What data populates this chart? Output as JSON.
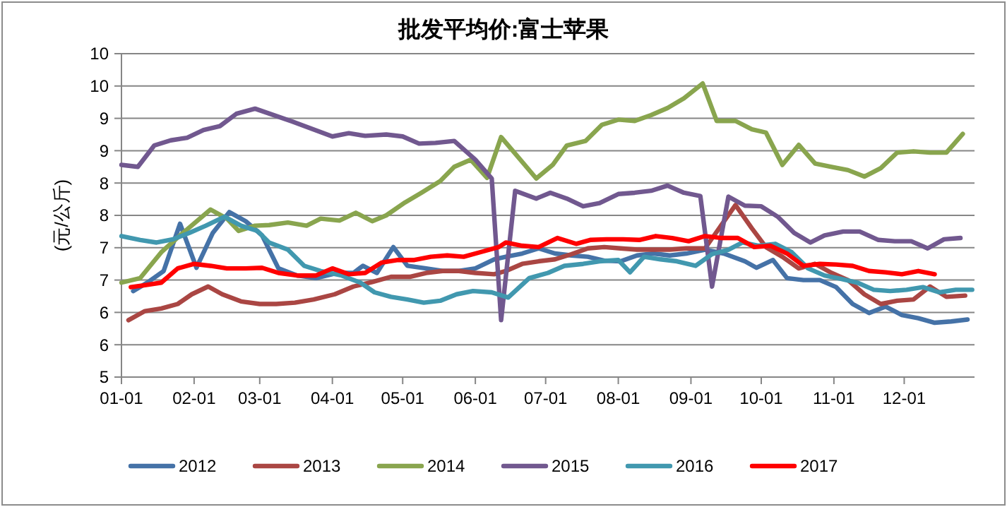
{
  "chart_data": {
    "type": "line",
    "title": "批发平均价:富士苹果",
    "ylabel": "(元/公斤)",
    "xlim": [
      "--01-01",
      "--12-31"
    ],
    "xticks": [
      {
        "value": "--01-01",
        "label": "01-01"
      },
      {
        "value": "--02-01",
        "label": "02-01"
      },
      {
        "value": "--03-01",
        "label": "03-01"
      },
      {
        "value": "--04-01",
        "label": "04-01"
      },
      {
        "value": "--05-01",
        "label": "05-01"
      },
      {
        "value": "--06-01",
        "label": "06-01"
      },
      {
        "value": "--07-01",
        "label": "07-01"
      },
      {
        "value": "--08-01",
        "label": "08-01"
      },
      {
        "value": "--09-01",
        "label": "09-01"
      },
      {
        "value": "--10-01",
        "label": "10-01"
      },
      {
        "value": "--11-01",
        "label": "11-01"
      },
      {
        "value": "--12-01",
        "label": "12-01"
      }
    ],
    "ylim": [
      5,
      10
    ],
    "yticks": [
      5,
      {
        "value": 5.5,
        "label": "6"
      },
      6,
      {
        "value": 6.5,
        "label": "7"
      },
      7,
      {
        "value": 7.5,
        "label": "8"
      },
      8,
      {
        "value": 8.5,
        "label": "9"
      },
      9,
      {
        "value": 9.5,
        "label": "10"
      },
      10
    ],
    "grid": "y",
    "legend": "bottom",
    "marker": "none",
    "line_style": "solid",
    "series": [
      {
        "name": "2012",
        "color": "#4572a7",
        "x": [
          "--01-06",
          "--01-12",
          "--01-19",
          "--01-26",
          "--02-02",
          "--02-09",
          "--02-16",
          "--02-23",
          "--03-02",
          "--03-09",
          "--03-17",
          "--03-25",
          "--04-03",
          "--04-10",
          "--04-14",
          "--04-20",
          "--04-27",
          "--05-03",
          "--05-11",
          "--05-18",
          "--05-25",
          "--06-01",
          "--06-09",
          "--06-14",
          "--06-21",
          "--06-28",
          "--07-05",
          "--07-12",
          "--07-19",
          "--07-26",
          "--08-02",
          "--08-09",
          "--08-16",
          "--08-23",
          "--08-30",
          "--09-07",
          "--09-15",
          "--09-24",
          "--09-29",
          "--10-06",
          "--10-12",
          "--10-19",
          "--10-26",
          "--11-02",
          "--11-09",
          "--11-16",
          "--11-23",
          "--11-30",
          "--12-07",
          "--12-14",
          "--12-21",
          "--12-28"
        ],
        "values": [
          6.33,
          6.46,
          6.64,
          7.37,
          6.69,
          7.23,
          7.55,
          7.41,
          7.19,
          6.68,
          6.57,
          6.53,
          6.61,
          6.61,
          6.72,
          6.61,
          7.01,
          6.72,
          6.68,
          6.64,
          6.64,
          6.68,
          6.82,
          6.86,
          6.91,
          6.99,
          6.91,
          6.88,
          6.86,
          6.8,
          6.79,
          6.88,
          6.91,
          6.88,
          6.91,
          6.97,
          6.91,
          6.79,
          6.69,
          6.81,
          6.53,
          6.5,
          6.5,
          6.39,
          6.13,
          5.99,
          6.09,
          5.96,
          5.91,
          5.84,
          5.86,
          5.89
        ]
      },
      {
        "name": "2013",
        "color": "#aa4643",
        "x": [
          "--01-04",
          "--01-11",
          "--01-18",
          "--01-25",
          "--01-31",
          "--02-07",
          "--02-13",
          "--02-21",
          "--03-01",
          "--03-08",
          "--03-16",
          "--03-24",
          "--04-02",
          "--04-10",
          "--04-18",
          "--04-26",
          "--05-04",
          "--05-11",
          "--05-18",
          "--05-25",
          "--06-01",
          "--06-09",
          "--06-14",
          "--06-21",
          "--06-28",
          "--07-05",
          "--07-12",
          "--07-19",
          "--07-26",
          "--08-02",
          "--08-09",
          "--08-16",
          "--08-23",
          "--08-30",
          "--09-07",
          "--09-20",
          "--09-27",
          "--10-03",
          "--10-10",
          "--10-17",
          "--10-24",
          "--10-31",
          "--11-07",
          "--11-14",
          "--11-21",
          "--11-28",
          "--12-05",
          "--12-12",
          "--12-19",
          "--12-27"
        ],
        "values": [
          5.88,
          6.02,
          6.06,
          6.13,
          6.28,
          6.4,
          6.28,
          6.17,
          6.13,
          6.13,
          6.15,
          6.2,
          6.28,
          6.4,
          6.47,
          6.55,
          6.55,
          6.61,
          6.64,
          6.64,
          6.61,
          6.59,
          6.64,
          6.75,
          6.79,
          6.82,
          6.9,
          6.99,
          7.01,
          6.99,
          6.97,
          6.97,
          6.97,
          6.99,
          6.99,
          7.66,
          7.3,
          7.01,
          6.86,
          6.68,
          6.75,
          6.61,
          6.5,
          6.28,
          6.13,
          6.18,
          6.2,
          6.4,
          6.24,
          6.26
        ]
      },
      {
        "name": "2014",
        "color": "#89a54e",
        "x": [
          "--01-01",
          "--01-09",
          "--01-18",
          "--01-26",
          "--02-08",
          "--02-15",
          "--02-20",
          "--02-27",
          "--03-05",
          "--03-13",
          "--03-21",
          "--03-27",
          "--04-04",
          "--04-11",
          "--04-18",
          "--04-24",
          "--05-02",
          "--05-09",
          "--05-17",
          "--05-23",
          "--05-30",
          "--06-06",
          "--06-12",
          "--06-27",
          "--07-04",
          "--07-10",
          "--07-18",
          "--07-25",
          "--08-01",
          "--08-08",
          "--08-15",
          "--08-22",
          "--08-29",
          "--09-06",
          "--09-12",
          "--09-20",
          "--09-27",
          "--10-03",
          "--10-10",
          "--10-17",
          "--10-24",
          "--10-31",
          "--11-07",
          "--11-14",
          "--11-21",
          "--11-28",
          "--12-05",
          "--12-12",
          "--12-19",
          "--12-26"
        ],
        "values": [
          6.46,
          6.53,
          6.93,
          7.19,
          7.59,
          7.45,
          7.26,
          7.34,
          7.35,
          7.39,
          7.34,
          7.45,
          7.42,
          7.54,
          7.41,
          7.5,
          7.7,
          7.85,
          8.03,
          8.25,
          8.36,
          8.08,
          8.71,
          8.07,
          8.28,
          8.58,
          8.65,
          8.9,
          8.98,
          8.96,
          9.05,
          9.16,
          9.31,
          9.54,
          8.96,
          8.96,
          8.83,
          8.78,
          8.28,
          8.59,
          8.3,
          8.25,
          8.2,
          8.1,
          8.23,
          8.47,
          8.49,
          8.47,
          8.47,
          8.76
        ]
      },
      {
        "name": "2015",
        "color": "#71588f",
        "x": [
          "--01-01",
          "--01-08",
          "--01-15",
          "--01-22",
          "--01-29",
          "--02-05",
          "--02-12",
          "--02-19",
          "--02-27",
          "--03-15",
          "--04-01",
          "--04-08",
          "--04-15",
          "--04-24",
          "--05-01",
          "--05-08",
          "--05-15",
          "--05-23",
          "--06-01",
          "--06-08",
          "--06-12",
          "--06-18",
          "--06-27",
          "--07-03",
          "--07-10",
          "--07-17",
          "--07-24",
          "--08-01",
          "--08-08",
          "--08-15",
          "--08-22",
          "--08-29",
          "--09-05",
          "--09-10",
          "--09-17",
          "--09-24",
          "--10-01",
          "--10-08",
          "--10-15",
          "--10-22",
          "--10-28",
          "--11-05",
          "--11-12",
          "--11-20",
          "--11-27",
          "--12-04",
          "--12-11",
          "--12-18",
          "--12-25"
        ],
        "values": [
          8.28,
          8.25,
          8.58,
          8.66,
          8.7,
          8.82,
          8.88,
          9.07,
          9.15,
          8.95,
          8.72,
          8.77,
          8.73,
          8.75,
          8.72,
          8.61,
          8.62,
          8.65,
          8.36,
          8.07,
          5.88,
          7.88,
          7.76,
          7.85,
          7.76,
          7.64,
          7.69,
          7.83,
          7.85,
          7.88,
          7.96,
          7.85,
          7.8,
          6.4,
          7.79,
          7.65,
          7.64,
          7.48,
          7.23,
          7.08,
          7.19,
          7.25,
          7.25,
          7.12,
          7.1,
          7.1,
          6.99,
          7.13,
          7.15
        ]
      },
      {
        "name": "2016",
        "color": "#4198af",
        "x": [
          "--01-01",
          "--01-09",
          "--01-16",
          "--01-23",
          "--01-30",
          "--02-06",
          "--02-14",
          "--02-21",
          "--02-28",
          "--03-05",
          "--03-13",
          "--03-20",
          "--03-27",
          "--04-05",
          "--04-13",
          "--04-19",
          "--04-26",
          "--05-03",
          "--05-10",
          "--05-17",
          "--05-24",
          "--05-31",
          "--06-08",
          "--06-15",
          "--06-24",
          "--07-02",
          "--07-09",
          "--07-17",
          "--07-24",
          "--08-01",
          "--08-06",
          "--08-12",
          "--08-19",
          "--08-26",
          "--09-03",
          "--09-10",
          "--09-17",
          "--09-23",
          "--09-30",
          "--10-07",
          "--10-14",
          "--10-21",
          "--10-28",
          "--11-04",
          "--11-11",
          "--11-18",
          "--11-25",
          "--12-02",
          "--12-09",
          "--12-16",
          "--12-23",
          "--12-30"
        ],
        "values": [
          7.18,
          7.12,
          7.08,
          7.13,
          7.23,
          7.34,
          7.48,
          7.34,
          7.26,
          7.08,
          6.97,
          6.72,
          6.64,
          6.57,
          6.46,
          6.31,
          6.24,
          6.2,
          6.15,
          6.18,
          6.28,
          6.33,
          6.31,
          6.23,
          6.53,
          6.61,
          6.72,
          6.75,
          6.79,
          6.81,
          6.62,
          6.86,
          6.82,
          6.79,
          6.72,
          6.9,
          6.97,
          7.08,
          7.03,
          7.06,
          6.93,
          6.68,
          6.57,
          6.52,
          6.46,
          6.35,
          6.33,
          6.35,
          6.39,
          6.31,
          6.35,
          6.35
        ]
      },
      {
        "name": "2017",
        "color": "#ff0000",
        "x": [
          "--01-05",
          "--01-11",
          "--01-18",
          "--01-25",
          "--02-01",
          "--02-08",
          "--02-15",
          "--02-23",
          "--03-02",
          "--03-09",
          "--03-17",
          "--03-25",
          "--04-01",
          "--04-08",
          "--04-15",
          "--04-22",
          "--04-29",
          "--05-06",
          "--05-13",
          "--05-20",
          "--05-27",
          "--06-03",
          "--06-11",
          "--06-14",
          "--06-21",
          "--06-28",
          "--07-06",
          "--07-14",
          "--07-20",
          "--07-27",
          "--08-03",
          "--08-10",
          "--08-17",
          "--08-24",
          "--08-31",
          "--09-07",
          "--09-14",
          "--09-21",
          "--09-28",
          "--10-05",
          "--10-12",
          "--10-19",
          "--10-26",
          "--11-02",
          "--11-09",
          "--11-16",
          "--11-23",
          "--11-30",
          "--12-07",
          "--12-14"
        ],
        "values": [
          6.39,
          6.42,
          6.46,
          6.68,
          6.75,
          6.72,
          6.68,
          6.68,
          6.69,
          6.61,
          6.57,
          6.57,
          6.68,
          6.59,
          6.61,
          6.77,
          6.81,
          6.81,
          6.86,
          6.88,
          6.86,
          6.93,
          7.01,
          7.08,
          7.03,
          7.01,
          7.15,
          7.06,
          7.12,
          7.13,
          7.13,
          7.12,
          7.18,
          7.15,
          7.1,
          7.18,
          7.15,
          7.15,
          7.01,
          7.03,
          6.91,
          6.72,
          6.75,
          6.74,
          6.72,
          6.64,
          6.62,
          6.59,
          6.64,
          6.59
        ]
      }
    ]
  }
}
